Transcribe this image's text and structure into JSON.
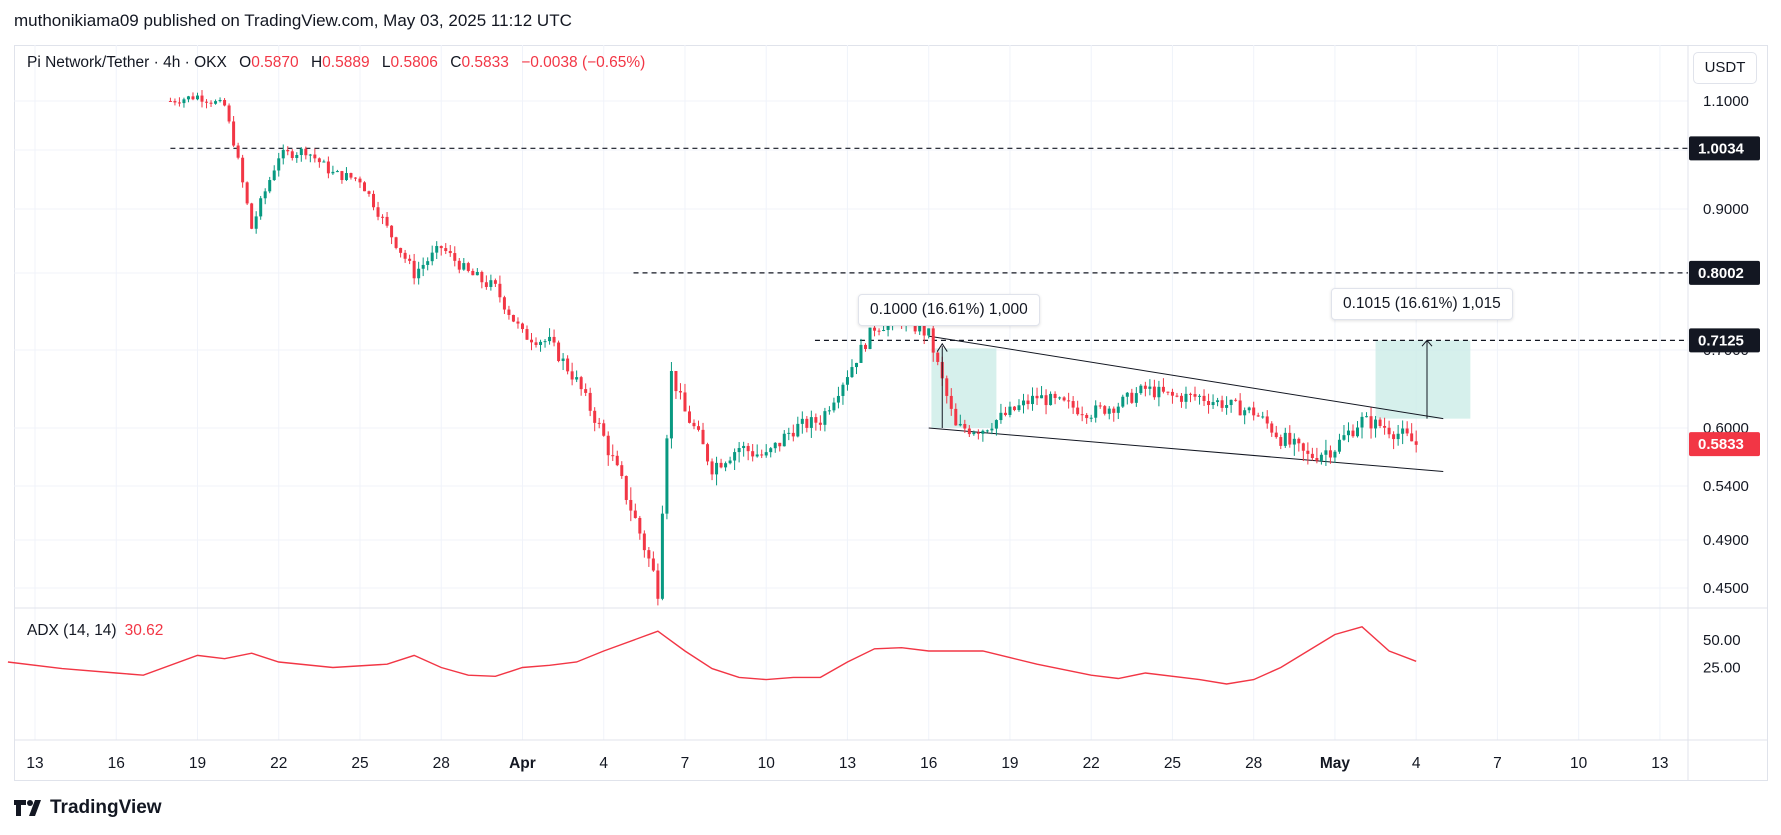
{
  "header": {
    "published_by": "muthonikiama09 published on TradingView.com, May 03, 2025 11:12 UTC"
  },
  "legend": {
    "symbol": "Pi Network/Tether · 4h · OKX",
    "open_label": "O",
    "open": "0.5870",
    "high_label": "H",
    "high": "0.5889",
    "low_label": "L",
    "low": "0.5806",
    "close_label": "C",
    "close": "0.5833",
    "change": "−0.0038 (−0.65%)"
  },
  "currency": "USDT",
  "adx": {
    "label": "ADX (14, 14)",
    "value": "30.62"
  },
  "brand": "TradingView",
  "colors": {
    "up": "#089981",
    "down": "#f23645",
    "adx_line": "#f23645",
    "range_fill": "#c8ebe6"
  },
  "measure_labels": [
    "0.1000 (16.61%) 1,000",
    "0.1015 (16.61%) 1,015"
  ],
  "chart_data": {
    "type": "candlestick",
    "x_tick_labels": [
      "13",
      "16",
      "19",
      "22",
      "25",
      "28",
      "Apr",
      "4",
      "7",
      "10",
      "13",
      "16",
      "19",
      "22",
      "25",
      "28",
      "May",
      "4",
      "7",
      "10",
      "13"
    ],
    "price_axis_ticks": [
      "1.1000",
      "0.9000",
      "0.7000",
      "0.6000",
      "0.5400",
      "0.4900",
      "0.4500"
    ],
    "price_badges": [
      {
        "value": "1.0034",
        "style": "dark"
      },
      {
        "value": "0.8002",
        "style": "dark"
      },
      {
        "value": "0.7125",
        "style": "dark"
      },
      {
        "value": "0.5833",
        "style": "red"
      }
    ],
    "horizontal_levels": [
      1.0034,
      0.8002,
      0.7125
    ],
    "last_price": 0.5833,
    "adx_axis_ticks": [
      "50.00",
      "25.00"
    ],
    "adx_last": 30.62,
    "price_path": [
      [
        "Mar 18",
        1.1
      ],
      [
        "Mar 19",
        1.11
      ],
      [
        "Mar 20",
        1.09
      ],
      [
        "Mar 21",
        0.87
      ],
      [
        "Mar 22",
        0.99
      ],
      [
        "Mar 23",
        1.0
      ],
      [
        "Mar 24",
        0.96
      ],
      [
        "Mar 25",
        0.95
      ],
      [
        "Mar 26",
        0.87
      ],
      [
        "Mar 27",
        0.8
      ],
      [
        "Mar 28",
        0.84
      ],
      [
        "Mar 29",
        0.8
      ],
      [
        "Mar 30",
        0.78
      ],
      [
        "Mar 31",
        0.72
      ],
      [
        "Apr 1",
        0.71
      ],
      [
        "Apr 2",
        0.66
      ],
      [
        "Apr 3",
        0.59
      ],
      [
        "Apr 4",
        0.52
      ],
      [
        "Apr 5",
        0.45
      ],
      [
        "Apr 5.5",
        0.67
      ],
      [
        "Apr 6",
        0.62
      ],
      [
        "Apr 7",
        0.56
      ],
      [
        "Apr 8",
        0.58
      ],
      [
        "Apr 9",
        0.57
      ],
      [
        "Apr 10",
        0.6
      ],
      [
        "Apr 11",
        0.61
      ],
      [
        "Apr 12",
        0.67
      ],
      [
        "Apr 13",
        0.73
      ],
      [
        "Apr 14",
        0.74
      ],
      [
        "Apr 15",
        0.72
      ],
      [
        "Apr 16",
        0.6
      ],
      [
        "Apr 17",
        0.6
      ],
      [
        "Apr 18",
        0.62
      ],
      [
        "Apr 19",
        0.64
      ],
      [
        "Apr 20",
        0.63
      ],
      [
        "Apr 21",
        0.62
      ],
      [
        "Apr 22",
        0.63
      ],
      [
        "Apr 23",
        0.65
      ],
      [
        "Apr 24",
        0.64
      ],
      [
        "Apr 25",
        0.64
      ],
      [
        "Apr 26",
        0.63
      ],
      [
        "Apr 27",
        0.62
      ],
      [
        "Apr 28",
        0.59
      ],
      [
        "Apr 29",
        0.57
      ],
      [
        "Apr 30",
        0.58
      ],
      [
        "May 1",
        0.61
      ],
      [
        "May 2",
        0.6
      ],
      [
        "May 3",
        0.5833
      ]
    ],
    "adx_path": [
      [
        "Mar 12",
        30
      ],
      [
        "Mar 14",
        24
      ],
      [
        "Mar 16",
        20
      ],
      [
        "Mar 17",
        18
      ],
      [
        "Mar 19",
        36
      ],
      [
        "Mar 20",
        33
      ],
      [
        "Mar 21",
        38
      ],
      [
        "Mar 22",
        30
      ],
      [
        "Mar 24",
        25
      ],
      [
        "Mar 26",
        28
      ],
      [
        "Mar 27",
        36
      ],
      [
        "Mar 28",
        25
      ],
      [
        "Mar 29",
        18
      ],
      [
        "Mar 30",
        17
      ],
      [
        "Mar 31",
        25
      ],
      [
        "Apr 1",
        27
      ],
      [
        "Apr 2",
        30
      ],
      [
        "Apr 3",
        40
      ],
      [
        "Apr 5",
        58
      ],
      [
        "Apr 6",
        40
      ],
      [
        "Apr 7",
        24
      ],
      [
        "Apr 8",
        16
      ],
      [
        "Apr 9",
        14
      ],
      [
        "Apr 10",
        16
      ],
      [
        "Apr 11",
        16
      ],
      [
        "Apr 12",
        30
      ],
      [
        "Apr 13",
        42
      ],
      [
        "Apr 14",
        43
      ],
      [
        "Apr 15",
        40
      ],
      [
        "Apr 17",
        40
      ],
      [
        "Apr 18",
        34
      ],
      [
        "Apr 19",
        28
      ],
      [
        "Apr 21",
        18
      ],
      [
        "Apr 22",
        15
      ],
      [
        "Apr 23",
        20
      ],
      [
        "Apr 25",
        14
      ],
      [
        "Apr 26",
        10
      ],
      [
        "Apr 27",
        14
      ],
      [
        "Apr 28",
        25
      ],
      [
        "Apr 29",
        40
      ],
      [
        "Apr 30",
        55
      ],
      [
        "May 1",
        62
      ],
      [
        "May 2",
        40
      ],
      [
        "May 3",
        30.62
      ]
    ]
  }
}
